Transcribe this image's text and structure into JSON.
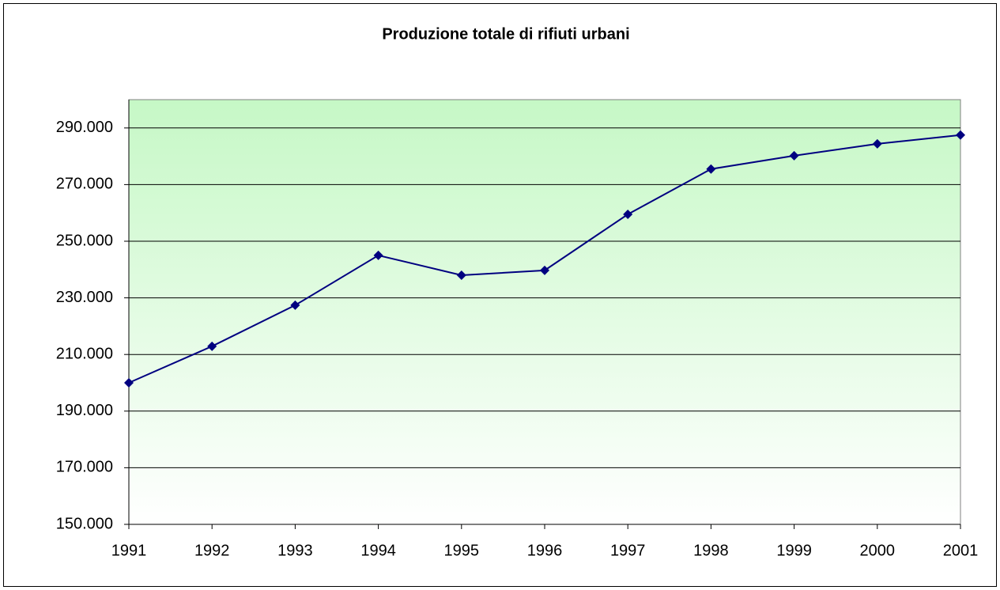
{
  "chart_data": {
    "type": "line",
    "title": "Produzione totale di rifiuti urbani",
    "categories": [
      "1991",
      "1992",
      "1993",
      "1994",
      "1995",
      "1996",
      "1997",
      "1998",
      "1999",
      "2000",
      "2001"
    ],
    "series": [
      {
        "name": "Produzione totale di rifiuti urbani",
        "color": "#000080",
        "values": [
          200000,
          212900,
          227400,
          245000,
          238000,
          239700,
          259500,
          275500,
          280200,
          284400,
          287500
        ]
      }
    ],
    "ylim": [
      150000,
      300000
    ],
    "yticks": [
      {
        "value": 150000,
        "label": "150.000"
      },
      {
        "value": 170000,
        "label": "170.000"
      },
      {
        "value": 190000,
        "label": "190.000"
      },
      {
        "value": 210000,
        "label": "210.000"
      },
      {
        "value": 230000,
        "label": "230.000"
      },
      {
        "value": 250000,
        "label": "250.000"
      },
      {
        "value": 270000,
        "label": "270.000"
      },
      {
        "value": 290000,
        "label": "290.000"
      }
    ],
    "grid": true
  }
}
